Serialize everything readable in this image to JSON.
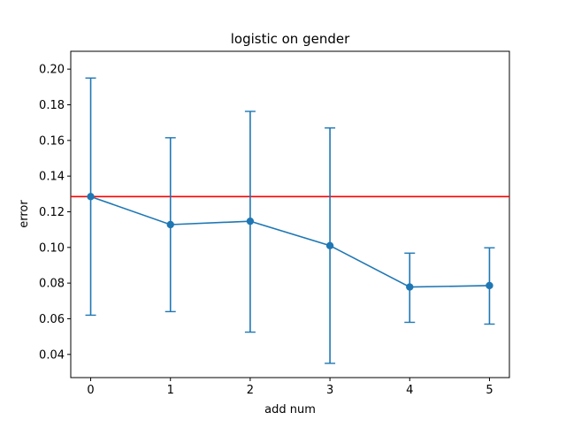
{
  "chart_data": {
    "type": "line",
    "title": "logistic on gender",
    "xlabel": "add num",
    "ylabel": "error",
    "xlim": [
      -0.25,
      5.25
    ],
    "ylim": [
      0.027,
      0.21
    ],
    "x_ticks": [
      "0",
      "1",
      "2",
      "3",
      "4",
      "5"
    ],
    "y_ticks": [
      "0.04",
      "0.06",
      "0.08",
      "0.10",
      "0.12",
      "0.14",
      "0.16",
      "0.18",
      "0.20"
    ],
    "grid": false,
    "series": [
      {
        "x": [
          0,
          1,
          2,
          3,
          4,
          5
        ],
        "values": [
          0.1285,
          0.1128,
          0.1147,
          0.101,
          0.0778,
          0.0786
        ],
        "yerr_low": [
          0.062,
          0.064,
          0.0525,
          0.035,
          0.058,
          0.057
        ],
        "yerr_high": [
          0.195,
          0.1615,
          0.1763,
          0.167,
          0.0968,
          0.0998
        ],
        "color": "#1f77b4",
        "marker": "circle"
      }
    ],
    "reference_lines": [
      {
        "orientation": "horizontal",
        "y": 0.1285,
        "color": "#ff0000"
      }
    ]
  }
}
